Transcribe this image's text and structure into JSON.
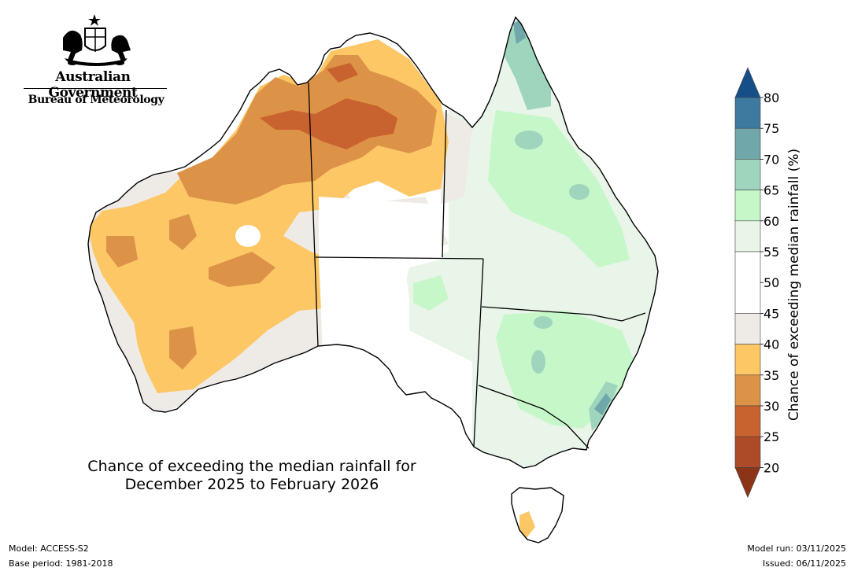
{
  "branding": {
    "government": "Australian Government",
    "agency": "Bureau of Meteorology"
  },
  "map": {
    "title_line1": "Chance of exceeding the median rainfall for",
    "title_line2": "December 2025 to February 2026"
  },
  "legend": {
    "label": "Chance of exceeding median rainfall (%)",
    "ticks": [
      "80",
      "75",
      "70",
      "65",
      "60",
      "55",
      "50",
      "45",
      "40",
      "35",
      "30",
      "25",
      "20"
    ],
    "colors": {
      "20_25": "#ad4a28",
      "25_30": "#c8622e",
      "30_35": "#dd9347",
      "35_40": "#fdc766",
      "40_45": "#eeebe6",
      "45_55": "#ffffff",
      "55_60": "#e9f5e9",
      "60_65": "#c6f7c9",
      "65_70": "#9fd5bd",
      "70_75": "#6fa7ab",
      "75_80": "#3e7a9f",
      "above_80": "#164e88",
      "below_20": "#8c3418"
    }
  },
  "footer": {
    "model": "Model: ACCESS-S2",
    "base_period": "Base period: 1981-2018",
    "model_run": "Model run: 03/11/2025",
    "issued": "Issued: 06/11/2025"
  }
}
